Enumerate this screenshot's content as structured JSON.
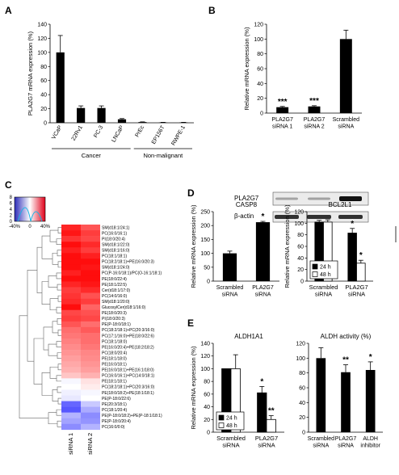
{
  "panel_labels": [
    "A",
    "B",
    "C",
    "D",
    "E"
  ],
  "chart_data": [
    {
      "id": "A",
      "type": "bar",
      "ylabel": "PLA2G7 mRNA expression (%)",
      "ylim": [
        0,
        140
      ],
      "yticks": [
        0,
        20,
        40,
        60,
        80,
        100,
        120,
        140
      ],
      "categories": [
        "VCaP",
        "22Rv1",
        "PC-3",
        "LNCaP",
        "PrEc",
        "EP156T",
        "RWPE-1"
      ],
      "values": [
        100,
        21,
        21,
        5,
        1,
        0.5,
        0.5
      ],
      "errors": [
        24,
        3,
        3,
        1,
        0.3,
        0.2,
        0.2
      ],
      "groups": [
        {
          "label": "Cancer",
          "from": 0,
          "to": 3
        },
        {
          "label": "Non-malignant",
          "from": 4,
          "to": 6
        }
      ],
      "grid": false
    },
    {
      "id": "B",
      "type": "bar",
      "ylabel": "Relative mRNA expression (%)",
      "ylim": [
        0,
        120
      ],
      "yticks": [
        0,
        20,
        40,
        60,
        80,
        100,
        120
      ],
      "categories": [
        "PLA2G7 siRNA 1",
        "PLA2G7 siRNA 2",
        "Scrambled siRNA"
      ],
      "values": [
        8,
        9,
        100
      ],
      "errors": [
        1,
        1,
        12
      ],
      "annotations": [
        "***",
        "***",
        ""
      ],
      "blot_labels": [
        "PLA2G7",
        "β-actin"
      ],
      "grid": false
    },
    {
      "id": "C",
      "type": "heatmap",
      "scale_ticks": [
        "-40%",
        "0",
        "40%"
      ],
      "scale_yticks": [
        "0",
        "2",
        "4",
        "6",
        "8"
      ],
      "columns": [
        "siRNA 1",
        "siRNA 2"
      ],
      "rows": [
        "SM(d18:1/24:1)",
        "PC(16:0/16:1)",
        "PI(18:0/20:4)",
        "SM(d18:1/22:0)",
        "SM(d18:1/16:0)",
        "PC(18:1/18:1)",
        "PC(18:2/18:1)+PE(16:0/20:3)",
        "SM(d18:1/24:0)",
        "PC(P-16:0/18:1)/PC(O-16:1/18:1)",
        "PE(18:0/22:4)",
        "PE(18:1/22:5)",
        "Cer(d18:1/17:0)",
        "PC(14:0/16:0)",
        "SM(d18:1/20:0)",
        "GlucosylCer(d18:1/16:0)",
        "PE(18:0/20:3)",
        "PI(18:0/20:3)",
        "PE(P-18:0/18:1)",
        "PC(18:2/18:1)+PC(20:3/16:0)",
        "PC(17:1/16:0)+PE(18:0/22:6)",
        "PC(18:1/18:0)",
        "PE(16:0/20:4)+PE(18:2/18:2)",
        "PC(18:0/20:4)",
        "PE(18:1/18:0)",
        "PE(16:0/18:1)",
        "PE(16:0/18:1)+PE(16:1/18:0)",
        "PC(16:0/16:1)+PC(14:0/18:1)",
        "PE(18:1/18:1)",
        "PC(18:2/18:1)+PC(20:3/16:0)",
        "PE(18:0/18:2)+PE(18:1/18:1)",
        "PE(P-18:0/22:6)",
        "PE(20:3/18:1)",
        "PC(18:1/20:4)",
        "PE(P-18:0/18:2)+PE(P-18:1/18:1)",
        "PE(P-18:0/20:4)",
        "PC(16:0/0:0)"
      ],
      "values": [
        [
          45,
          35
        ],
        [
          48,
          40
        ],
        [
          42,
          38
        ],
        [
          50,
          44
        ],
        [
          46,
          40
        ],
        [
          52,
          46
        ],
        [
          55,
          50
        ],
        [
          50,
          48
        ],
        [
          46,
          50
        ],
        [
          58,
          55
        ],
        [
          45,
          48
        ],
        [
          40,
          44
        ],
        [
          42,
          36
        ],
        [
          44,
          40
        ],
        [
          60,
          32
        ],
        [
          38,
          36
        ],
        [
          40,
          38
        ],
        [
          35,
          30
        ],
        [
          30,
          34
        ],
        [
          28,
          30
        ],
        [
          26,
          30
        ],
        [
          24,
          28
        ],
        [
          22,
          25
        ],
        [
          20,
          24
        ],
        [
          18,
          22
        ],
        [
          16,
          20
        ],
        [
          12,
          16
        ],
        [
          -2,
          6
        ],
        [
          0,
          4
        ],
        [
          -4,
          -2
        ],
        [
          -6,
          0
        ],
        [
          -40,
          -14
        ],
        [
          -44,
          -22
        ],
        [
          -20,
          -30
        ],
        [
          -24,
          -28
        ],
        [
          -30,
          -20
        ]
      ]
    },
    {
      "id": "D1",
      "type": "bar",
      "title": "CASP8",
      "ylabel": "Relative mRNA expression (%)",
      "ylim": [
        0,
        250
      ],
      "yticks": [
        0,
        50,
        100,
        150,
        200,
        250
      ],
      "categories": [
        "Scrambled siRNA",
        "PLA2G7 siRNA"
      ],
      "values": [
        100,
        212
      ],
      "errors": [
        8,
        3
      ],
      "annotations": [
        "",
        "*"
      ]
    },
    {
      "id": "D2",
      "type": "bar",
      "title": "BCL2L1",
      "ylabel": "Relative mRNA expression (%)",
      "ylim": [
        0,
        120
      ],
      "yticks": [
        0,
        20,
        40,
        60,
        80,
        100,
        120
      ],
      "categories": [
        "Scrambled siRNA",
        "PLA2G7 siRNA"
      ],
      "series": [
        {
          "name": "24 h",
          "color": "#000000",
          "values": [
            102,
            83
          ],
          "errors": [
            3,
            8
          ]
        },
        {
          "name": "48 h",
          "color": "#ffffff",
          "values": [
            102,
            31
          ],
          "errors": [
            4,
            5
          ]
        }
      ],
      "annotations": [
        [
          "",
          ""
        ],
        [
          "*",
          "*"
        ]
      ],
      "legend": "bottom-left"
    },
    {
      "id": "E1",
      "type": "bar",
      "title": "ALDH1A1",
      "ylabel": "Relative mRNA expression (%)",
      "ylim": [
        0,
        140
      ],
      "yticks": [
        0,
        20,
        40,
        60,
        80,
        100,
        120,
        140
      ],
      "categories": [
        "Scrambled siRNA",
        "PLA2G7 siRNA"
      ],
      "series": [
        {
          "name": "24 h",
          "color": "#000000",
          "values": [
            100,
            62
          ],
          "errors": [
            0,
            10
          ]
        },
        {
          "name": "48 h",
          "color": "#ffffff",
          "values": [
            100,
            20
          ],
          "errors": [
            22,
            6
          ]
        }
      ],
      "annotations": [
        [
          "",
          ""
        ],
        [
          "*",
          "**"
        ]
      ],
      "legend": "bottom-left"
    },
    {
      "id": "E2",
      "type": "bar",
      "title": "ALDH activity (%)",
      "ylim": [
        0,
        120
      ],
      "yticks": [
        0,
        20,
        40,
        60,
        80,
        100,
        120
      ],
      "categories": [
        "Scrambled siRNA",
        "PLA2G7 siRNA",
        "ALDH inhibitor"
      ],
      "values": [
        100,
        81,
        84
      ],
      "errors": [
        14,
        10,
        11
      ],
      "annotations": [
        "",
        "**",
        "*"
      ]
    }
  ]
}
